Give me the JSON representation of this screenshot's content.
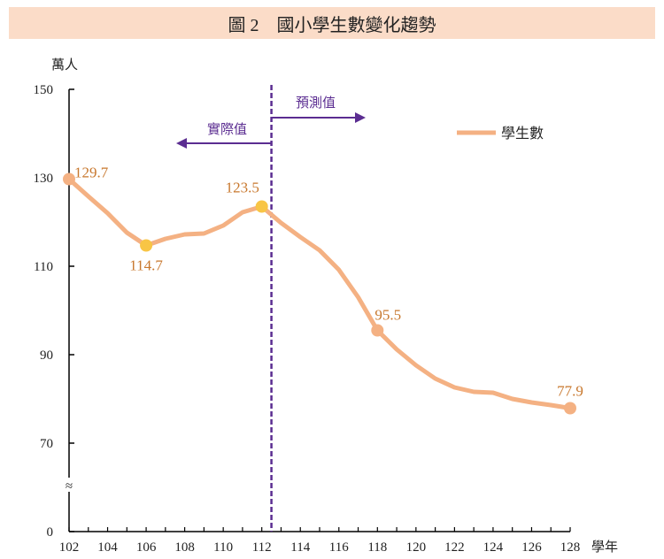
{
  "title": "圖 2　國小學生數變化趨勢",
  "chart_data": {
    "type": "line",
    "title": "圖 2　國小學生數變化趨勢",
    "ylabel": "萬人",
    "xlabel": "學年",
    "x": [
      102,
      103,
      104,
      105,
      106,
      107,
      108,
      109,
      110,
      111,
      112,
      113,
      114,
      115,
      116,
      117,
      118,
      119,
      120,
      121,
      122,
      123,
      124,
      125,
      126,
      127,
      128
    ],
    "series": [
      {
        "name": "學生數",
        "color": "#f4b183",
        "values": [
          129.7,
          125.8,
          122.0,
          117.6,
          114.7,
          116.2,
          117.2,
          117.4,
          119.2,
          122.2,
          123.5,
          119.8,
          116.6,
          113.6,
          109.2,
          103.0,
          95.5,
          91.2,
          87.6,
          84.6,
          82.6,
          81.6,
          81.4,
          80.0,
          79.2,
          78.6,
          77.9
        ]
      }
    ],
    "labeled_points": [
      {
        "x": 102,
        "label": "129.7",
        "marker": "#f4b183"
      },
      {
        "x": 106,
        "label": "114.7",
        "marker": "#f8c545"
      },
      {
        "x": 112,
        "label": "123.5",
        "marker": "#f8c545"
      },
      {
        "x": 118,
        "label": "95.5",
        "marker": "#f4b183"
      },
      {
        "x": 128,
        "label": "77.9",
        "marker": "#f4b183"
      }
    ],
    "yticks": [
      "0",
      "70",
      "90",
      "110",
      "130",
      "150"
    ],
    "ylim": [
      70,
      150
    ],
    "axis_break": "≈",
    "xticks": [
      "102",
      "104",
      "106",
      "108",
      "110",
      "112",
      "114",
      "116",
      "118",
      "120",
      "122",
      "124",
      "126",
      "128"
    ],
    "xlim": [
      102,
      128
    ],
    "divider_x": 112.5,
    "divider_color": "#5b2d91",
    "annotations": {
      "actual": "實際值",
      "forecast": "預測值"
    },
    "legend_position": "top-right",
    "grid": false
  }
}
